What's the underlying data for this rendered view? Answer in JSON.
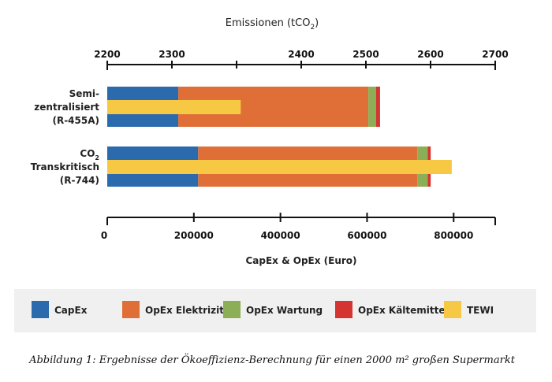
{
  "chart_data": {
    "type": "bar",
    "orientation": "horizontal",
    "stacked": true,
    "top_axis": {
      "label_main": "Emissionen (tCO",
      "label_sub": "2",
      "label_end": ")",
      "range": [
        2200,
        2700
      ],
      "tick_labels": [
        "2200",
        "2300",
        "",
        "2400",
        "2500",
        "2600",
        "2700"
      ]
    },
    "bottom_axis": {
      "label": "CapEx & OpEx (Euro)",
      "range": [
        0,
        896000
      ],
      "ticks": [
        0,
        200000,
        400000,
        600000,
        800000
      ],
      "tick_labels": [
        "0",
        "200000",
        "400000",
        "600000",
        "800000"
      ]
    },
    "categories": [
      {
        "lines": [
          "Semi-",
          "zentralisiert",
          "(R-455A)"
        ]
      },
      {
        "lines": [
          "CO",
          "Transkritisch",
          "(R-744)"
        ],
        "sub": "2"
      }
    ],
    "series": [
      {
        "name": "CapEx",
        "color": "#2a6aad",
        "axis": "bottom",
        "values": [
          164000,
          210000
        ]
      },
      {
        "name": "OpEx Elektrizität",
        "color": "#df6f37",
        "axis": "bottom",
        "values": [
          439000,
          506000
        ]
      },
      {
        "name": "OpEx Wartung",
        "color": "#8bae56",
        "axis": "bottom",
        "values": [
          18000,
          24000
        ]
      },
      {
        "name": "OpEx Kältemittel",
        "color": "#d53530",
        "axis": "bottom",
        "values": [
          9000,
          7000
        ]
      },
      {
        "name": "TEWI",
        "color": "#f6c843",
        "axis": "top",
        "values": [
          2372,
          2644
        ]
      }
    ],
    "legend_position": "bottom",
    "grid": false
  },
  "caption": "Abbildung 1: Ergebnisse der Ökoeffizienz-Berechnung für einen 2000 m² großen Supermarkt"
}
